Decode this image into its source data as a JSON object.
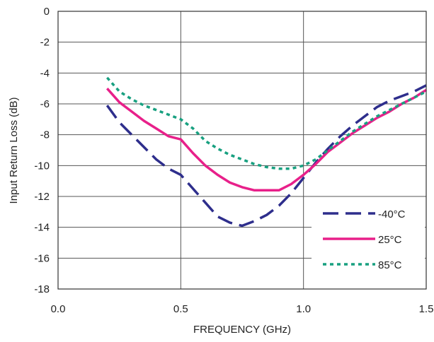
{
  "chart_data": {
    "type": "line",
    "xlabel": "FREQUENCY (GHz)",
    "ylabel": "Input Return Loss (dB)",
    "xlim": [
      0,
      1.5
    ],
    "ylim": [
      -18,
      0
    ],
    "x_ticks": [
      "0.0",
      "0.5",
      "1.0",
      "1.5"
    ],
    "y_ticks": [
      "0",
      "-2",
      "-4",
      "-6",
      "-8",
      "-10",
      "-12",
      "-14",
      "-16",
      "-18"
    ],
    "grid": true,
    "legend_position": "bottom-right",
    "series": [
      {
        "name": "-40°C",
        "color": "#2e2e8c",
        "style": "dashed",
        "points": [
          [
            0.2,
            -6.1
          ],
          [
            0.25,
            -7.2
          ],
          [
            0.3,
            -8.0
          ],
          [
            0.35,
            -8.8
          ],
          [
            0.4,
            -9.6
          ],
          [
            0.45,
            -10.2
          ],
          [
            0.5,
            -10.6
          ],
          [
            0.55,
            -11.5
          ],
          [
            0.6,
            -12.4
          ],
          [
            0.65,
            -13.3
          ],
          [
            0.7,
            -13.7
          ],
          [
            0.75,
            -13.9
          ],
          [
            0.8,
            -13.6
          ],
          [
            0.85,
            -13.2
          ],
          [
            0.9,
            -12.6
          ],
          [
            0.95,
            -11.8
          ],
          [
            1.0,
            -10.8
          ],
          [
            1.05,
            -9.8
          ],
          [
            1.1,
            -8.9
          ],
          [
            1.15,
            -8.1
          ],
          [
            1.2,
            -7.4
          ],
          [
            1.25,
            -6.8
          ],
          [
            1.3,
            -6.2
          ],
          [
            1.35,
            -5.8
          ],
          [
            1.4,
            -5.5
          ],
          [
            1.45,
            -5.2
          ],
          [
            1.5,
            -4.8
          ]
        ]
      },
      {
        "name": "25°C",
        "color": "#e8208a",
        "style": "solid",
        "points": [
          [
            0.2,
            -5.0
          ],
          [
            0.25,
            -5.9
          ],
          [
            0.3,
            -6.5
          ],
          [
            0.35,
            -7.1
          ],
          [
            0.4,
            -7.6
          ],
          [
            0.45,
            -8.1
          ],
          [
            0.5,
            -8.3
          ],
          [
            0.55,
            -9.2
          ],
          [
            0.6,
            -10.0
          ],
          [
            0.65,
            -10.6
          ],
          [
            0.7,
            -11.1
          ],
          [
            0.75,
            -11.4
          ],
          [
            0.8,
            -11.6
          ],
          [
            0.85,
            -11.6
          ],
          [
            0.9,
            -11.6
          ],
          [
            0.95,
            -11.2
          ],
          [
            1.0,
            -10.6
          ],
          [
            1.05,
            -9.9
          ],
          [
            1.1,
            -9.1
          ],
          [
            1.15,
            -8.5
          ],
          [
            1.2,
            -7.9
          ],
          [
            1.25,
            -7.4
          ],
          [
            1.3,
            -6.9
          ],
          [
            1.35,
            -6.5
          ],
          [
            1.4,
            -6.0
          ],
          [
            1.45,
            -5.6
          ],
          [
            1.5,
            -5.1
          ]
        ]
      },
      {
        "name": "85°C",
        "color": "#18a080",
        "style": "dotted",
        "points": [
          [
            0.2,
            -4.3
          ],
          [
            0.25,
            -5.2
          ],
          [
            0.3,
            -5.7
          ],
          [
            0.35,
            -6.1
          ],
          [
            0.4,
            -6.4
          ],
          [
            0.45,
            -6.7
          ],
          [
            0.5,
            -7.0
          ],
          [
            0.55,
            -7.6
          ],
          [
            0.6,
            -8.4
          ],
          [
            0.65,
            -8.9
          ],
          [
            0.7,
            -9.3
          ],
          [
            0.75,
            -9.6
          ],
          [
            0.8,
            -9.9
          ],
          [
            0.85,
            -10.1
          ],
          [
            0.9,
            -10.2
          ],
          [
            0.95,
            -10.2
          ],
          [
            1.0,
            -10.0
          ],
          [
            1.05,
            -9.6
          ],
          [
            1.1,
            -9.0
          ],
          [
            1.15,
            -8.4
          ],
          [
            1.2,
            -7.8
          ],
          [
            1.25,
            -7.3
          ],
          [
            1.3,
            -6.8
          ],
          [
            1.35,
            -6.4
          ],
          [
            1.4,
            -6.0
          ],
          [
            1.45,
            -5.6
          ],
          [
            1.5,
            -5.2
          ]
        ]
      }
    ]
  }
}
